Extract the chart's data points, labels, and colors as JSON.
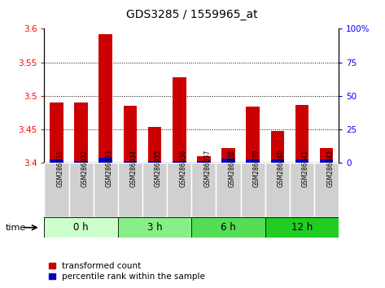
{
  "title": "GDS3285 / 1559965_at",
  "samples": [
    "GSM286031",
    "GSM286032",
    "GSM286033",
    "GSM286034",
    "GSM286035",
    "GSM286036",
    "GSM286037",
    "GSM286038",
    "GSM286039",
    "GSM286040",
    "GSM286041",
    "GSM286042"
  ],
  "red_values": [
    3.49,
    3.49,
    3.592,
    3.485,
    3.453,
    3.527,
    3.41,
    3.422,
    3.484,
    3.447,
    3.486,
    3.422
  ],
  "blue_values": [
    3.405,
    3.403,
    3.407,
    3.403,
    3.403,
    3.403,
    3.403,
    3.406,
    3.405,
    3.405,
    3.405,
    3.405
  ],
  "y_min": 3.4,
  "y_max": 3.6,
  "y_ticks_left": [
    3.4,
    3.45,
    3.5,
    3.55,
    3.6
  ],
  "y_ticks_right": [
    0,
    25,
    50,
    75,
    100
  ],
  "groups": [
    {
      "label": "0 h",
      "start": 0,
      "end": 3,
      "color": "#ccffcc"
    },
    {
      "label": "3 h",
      "start": 3,
      "end": 6,
      "color": "#88ee88"
    },
    {
      "label": "6 h",
      "start": 6,
      "end": 9,
      "color": "#55dd55"
    },
    {
      "label": "12 h",
      "start": 9,
      "end": 12,
      "color": "#22cc22"
    }
  ],
  "bar_color_red": "#cc0000",
  "bar_color_blue": "#0000cc",
  "bar_width": 0.55,
  "legend_labels": [
    "transformed count",
    "percentile rank within the sample"
  ],
  "cell_color": "#d0d0d0",
  "cell_edge": "#ffffff"
}
